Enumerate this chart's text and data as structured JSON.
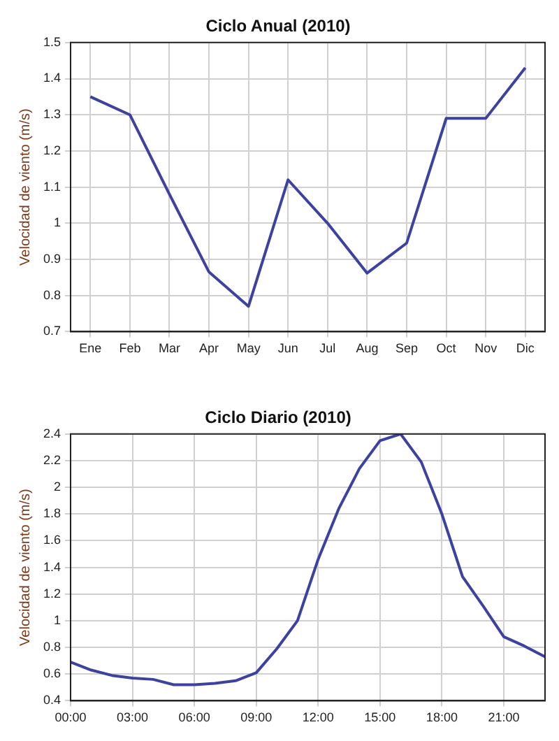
{
  "chart_data": [
    {
      "type": "line",
      "title": "Ciclo Anual (2010)",
      "ylabel": "Velocidad de viento (m/s)",
      "categories": [
        "Ene",
        "Feb",
        "Mar",
        "Apr",
        "May",
        "Jun",
        "Jul",
        "Aug",
        "Sep",
        "Oct",
        "Nov",
        "Dic"
      ],
      "series": [
        {
          "color": "#3d42a0",
          "values": [
            1.35,
            1.3,
            1.08,
            0.865,
            0.77,
            1.12,
            1.0,
            0.862,
            0.945,
            1.29,
            1.29,
            1.43
          ]
        }
      ],
      "ylim": [
        0.7,
        1.5
      ],
      "yticks": [
        0.7,
        0.8,
        0.9,
        1,
        1.1,
        1.2,
        1.3,
        1.4,
        1.5
      ],
      "grid": true,
      "legend": false,
      "marker": "none",
      "line_style": "solid"
    },
    {
      "type": "line",
      "title": "Ciclo Diario (2010)",
      "ylabel": "Velocidad de viento (m/s)",
      "x": [
        0,
        1,
        2,
        3,
        4,
        5,
        6,
        7,
        8,
        9,
        10,
        11,
        12,
        13,
        14,
        15,
        16,
        17,
        18,
        19,
        20,
        21,
        22,
        23
      ],
      "series": [
        {
          "color": "#3d42a0",
          "values": [
            0.69,
            0.63,
            0.59,
            0.57,
            0.56,
            0.52,
            0.52,
            0.53,
            0.55,
            0.61,
            0.79,
            1.0,
            1.46,
            1.84,
            2.14,
            2.35,
            2.4,
            2.19,
            1.8,
            1.33,
            1.11,
            0.88,
            0.81,
            0.73
          ]
        }
      ],
      "xlim": [
        0,
        23
      ],
      "xticks": [
        {
          "value": 0,
          "label": "00:00"
        },
        {
          "value": 3,
          "label": "03:00"
        },
        {
          "value": 6,
          "label": "06:00"
        },
        {
          "value": 9,
          "label": "09:00"
        },
        {
          "value": 12,
          "label": "12:00"
        },
        {
          "value": 15,
          "label": "15:00"
        },
        {
          "value": 18,
          "label": "18:00"
        },
        {
          "value": 21,
          "label": "21:00"
        }
      ],
      "ylim": [
        0.4,
        2.4
      ],
      "yticks": [
        0.4,
        0.6,
        0.8,
        1,
        1.2,
        1.4,
        1.6,
        1.8,
        2,
        2.2,
        2.4
      ],
      "grid": true,
      "legend": false,
      "marker": "none",
      "line_style": "solid"
    }
  ]
}
